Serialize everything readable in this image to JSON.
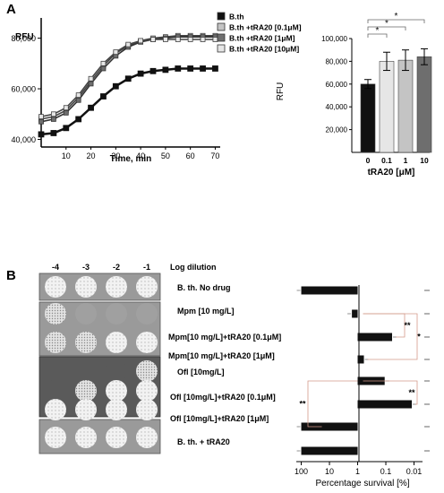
{
  "panel_a": {
    "label": "A",
    "kinetics": {
      "y_label": "RFU",
      "x_label": "Time, min",
      "y_ticks": [
        "40,000",
        "60,000",
        "80,000"
      ],
      "x_ticks": [
        "10",
        "20",
        "30",
        "40",
        "50",
        "60",
        "70"
      ],
      "legend": [
        "B.th",
        "B.th +tRA20 [0.1μM]",
        "B.th +tRA20 [1μM]",
        "B.th +tRA20 [10μM]"
      ]
    },
    "bar": {
      "y_label": "RFU",
      "x_label": "tRA20 [μM]",
      "y_ticks": [
        "20,000",
        "40,000",
        "60,000",
        "80,000",
        "100,000"
      ],
      "categories": [
        "0",
        "0.1",
        "1",
        "10"
      ],
      "significance": [
        "*",
        "*",
        "*"
      ]
    }
  },
  "panel_b": {
    "label": "B",
    "dilution_ticks": [
      "-4",
      "-3",
      "-2",
      "-1"
    ],
    "dilution_header": "Log dilution",
    "conditions": [
      "B. th. No drug",
      "Mpm [10 mg/L]",
      "Mpm[10 mg/L]+tRA20 [0.1μM]",
      "Mpm[10 mg/L]+tRA20 [1μM]",
      "Ofl [10mg/L]",
      "Ofl [10mg/L]+tRA20 [0.1μM]",
      "Ofl [10mg/L]+tRA20 [1μM]",
      "B. th. + tRA20"
    ],
    "survival_axis_label": "Percentage survival [%]",
    "survival_ticks": [
      "100",
      "10",
      "1",
      "0.1",
      "0.01"
    ],
    "significance": [
      "**",
      "*",
      "**",
      "**"
    ]
  },
  "colors": {
    "black_bar": "#111111",
    "light_bar": "#e6e6e6",
    "mid_bar": "#c4c4c4",
    "dark_bar": "#6e6e6e",
    "plate_bg": "#8c8c8c",
    "sig_line": "#d49a8a"
  },
  "chart_data": [
    {
      "type": "line",
      "x_unit": "min",
      "xlim": [
        0,
        72
      ],
      "ylim": [
        37000,
        88000
      ],
      "grid": false,
      "legend_position": "top-right",
      "series": [
        {
          "name": "B.th",
          "x": [
            0,
            5,
            10,
            15,
            20,
            25,
            30,
            35,
            40,
            45,
            50,
            55,
            60,
            65,
            70
          ],
          "y": [
            42000,
            42500,
            44500,
            48000,
            52500,
            57000,
            61000,
            64000,
            66000,
            67000,
            67500,
            68000,
            68000,
            68000,
            68000
          ]
        },
        {
          "name": "B.th +tRA20 [0.1μM]",
          "x": [
            0,
            5,
            10,
            15,
            20,
            25,
            30,
            35,
            40,
            45,
            50,
            55,
            60,
            65,
            70
          ],
          "y": [
            48000,
            49000,
            51500,
            56500,
            63000,
            69000,
            74000,
            77000,
            79000,
            80000,
            80500,
            81000,
            81000,
            81000,
            81000
          ]
        },
        {
          "name": "B.th +tRA20 [1μM]",
          "x": [
            0,
            5,
            10,
            15,
            20,
            25,
            30,
            35,
            40,
            45,
            50,
            55,
            60,
            65,
            70
          ],
          "y": [
            47000,
            48000,
            50500,
            55500,
            62000,
            68000,
            73000,
            76500,
            78500,
            79500,
            80000,
            80500,
            80500,
            80500,
            80500
          ]
        },
        {
          "name": "B.th +tRA20 [10μM]",
          "x": [
            0,
            5,
            10,
            15,
            20,
            25,
            30,
            35,
            40,
            45,
            50,
            55,
            60,
            65,
            70
          ],
          "y": [
            49000,
            50000,
            52500,
            57500,
            64000,
            70000,
            74500,
            77500,
            79000,
            79500,
            79500,
            79500,
            79500,
            79500,
            79500
          ]
        }
      ]
    },
    {
      "type": "bar",
      "categories": [
        "0",
        "0.1",
        "1",
        "10"
      ],
      "values": [
        60000,
        80000,
        81000,
        84000
      ],
      "errors": [
        4000,
        8000,
        9000,
        7000
      ],
      "ylim": [
        0,
        100000
      ],
      "xlabel": "tRA20 [μM]",
      "ylabel": "RFU"
    },
    {
      "type": "bar",
      "orientation": "horizontal",
      "scale": "log",
      "categories": [
        "B. th. No drug",
        "Mpm [10 mg/L]",
        "Mpm[10 mg/L]+tRA20 [0.1μM]",
        "Mpm[10 mg/L]+tRA20 [1μM]",
        "Ofl [10mg/L]",
        "Ofl [10mg/L]+tRA20 [0.1μM]",
        "Ofl [10mg/L]+tRA20 [1μM]",
        "B. th. + tRA20"
      ],
      "values": [
        100,
        1.6,
        0.06,
        0.6,
        0.11,
        0.012,
        100,
        100
      ],
      "xlim": [
        150,
        0.005
      ],
      "xlabel": "Percentage survival [%]"
    }
  ]
}
